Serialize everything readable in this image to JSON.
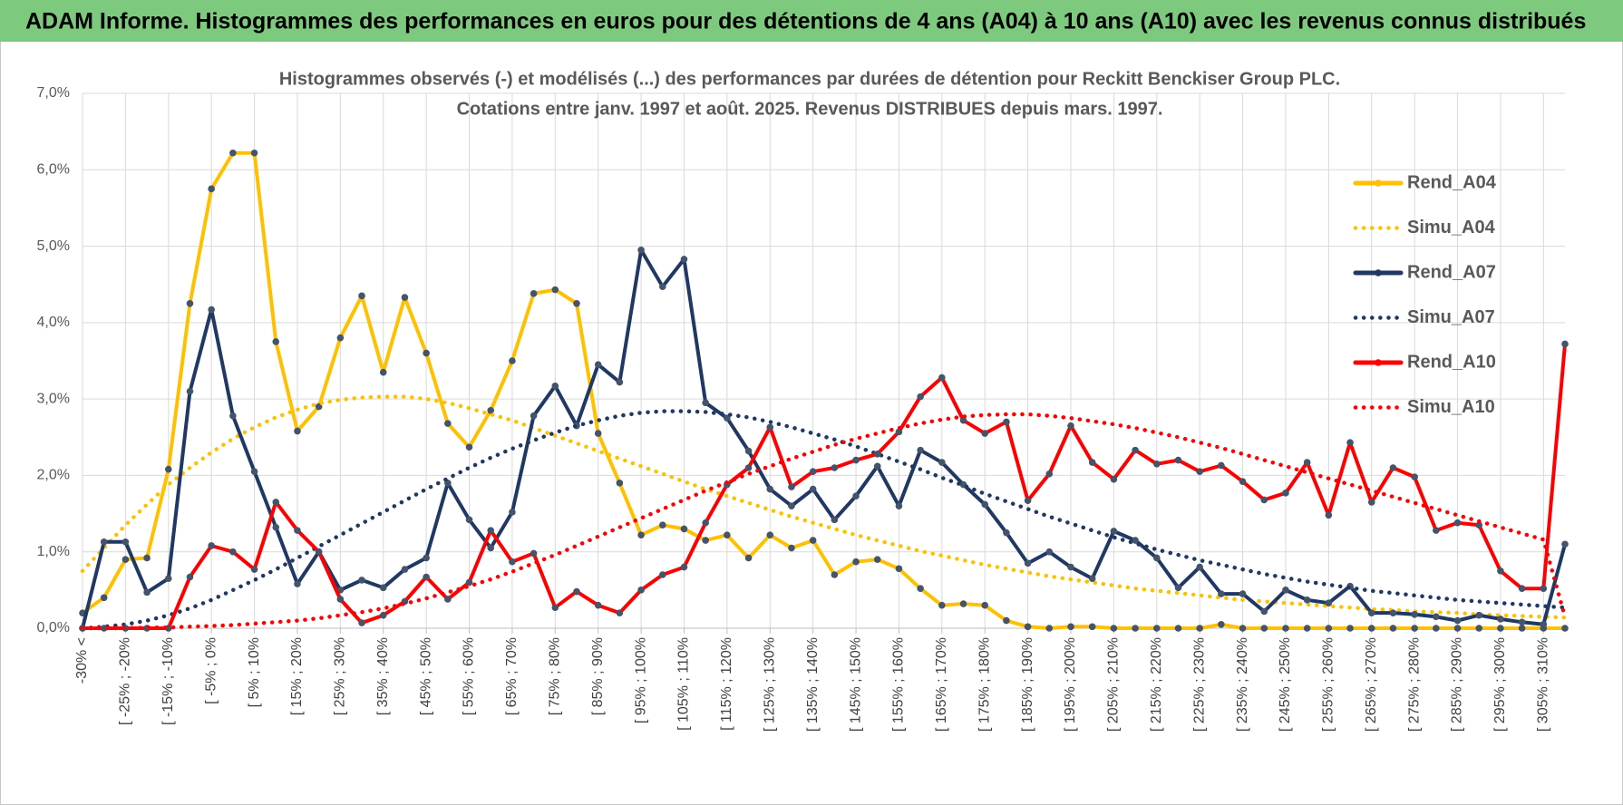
{
  "chart_data": {
    "type": "line",
    "header": "ADAM Informe. Histogrammes des performances en euros pour des détentions de 4 ans (A04) à 10 ans (A10) avec les revenus connus distribués",
    "title": [
      "Histogrammes observés (-) et modélisés (...) des performances par durées de détention pour Reckitt Benckiser Group PLC.",
      "Cotations entre janv. 1997 et août. 2025. Revenus DISTRIBUES depuis mars. 1997."
    ],
    "categories": [
      "-30% <",
      null,
      "[ -25% ; -20%",
      null,
      "[ -15% ; -10%",
      null,
      "[ -5% ; 0%",
      null,
      "[ 5% ; 10%",
      null,
      "[ 15% ; 20%",
      null,
      "[ 25% ; 30%",
      null,
      "[ 35% ; 40%",
      null,
      "[ 45% ; 50%",
      null,
      "[ 55% ; 60%",
      null,
      "[ 65% ; 70%",
      null,
      "[ 75% ; 80%",
      null,
      "[ 85% ; 90%",
      null,
      "[ 95% ; 100%",
      null,
      "[ 105% ; 110%",
      null,
      "[ 115% ; 120%",
      null,
      "[ 125% ; 130%",
      null,
      "[ 135% ; 140%",
      null,
      "[ 145% ; 150%",
      null,
      "[ 155% ; 160%",
      null,
      "[ 165% ; 170%",
      null,
      "[ 175% ; 180%",
      null,
      "[ 185% ; 190%",
      null,
      "[ 195% ; 200%",
      null,
      "[ 205% ; 210%",
      null,
      "[ 215% ; 220%",
      null,
      "[ 225% ; 230%",
      null,
      "[ 235% ; 240%",
      null,
      "[ 245% ; 250%",
      null,
      "[ 255% ; 260%",
      null,
      "[ 265% ; 270%",
      null,
      "[ 275% ; 280%",
      null,
      "[ 285% ; 290%",
      null,
      "[ 295% ; 300%",
      null,
      "[ 305% ; 310%",
      null
    ],
    "ylim": [
      0,
      7
    ],
    "yticks": [
      {
        "value": 0,
        "label": "0,0%"
      },
      {
        "value": 1,
        "label": "1,0%"
      },
      {
        "value": 2,
        "label": "2,0%"
      },
      {
        "value": 3,
        "label": "3,0%"
      },
      {
        "value": 4,
        "label": "4,0%"
      },
      {
        "value": 5,
        "label": "5,0%"
      },
      {
        "value": 6,
        "label": "6,0%"
      },
      {
        "value": 7,
        "label": "7,0%"
      }
    ],
    "grid": true,
    "legend": "right",
    "series": [
      {
        "name": "Rend_A04",
        "color": "#ffc000",
        "line_style": "solid",
        "values": [
          0.2,
          0.4,
          0.9,
          0.92,
          2.08,
          4.25,
          5.75,
          6.22,
          6.22,
          3.75,
          2.58,
          2.9,
          3.8,
          4.35,
          3.35,
          4.33,
          3.6,
          2.68,
          2.37,
          2.85,
          3.5,
          4.38,
          4.43,
          4.25,
          2.55,
          1.9,
          1.22,
          1.35,
          1.3,
          1.15,
          1.22,
          0.92,
          1.22,
          1.05,
          1.15,
          0.7,
          0.87,
          0.9,
          0.78,
          0.52,
          0.3,
          0.32,
          0.3,
          0.1,
          0.02,
          0,
          0.02,
          0.02,
          0,
          0,
          0,
          0,
          0,
          0.05,
          0,
          0,
          0,
          0,
          0,
          0,
          0,
          0,
          0,
          0,
          0,
          0,
          0,
          0,
          0,
          0
        ]
      },
      {
        "name": "Simu_A04",
        "color": "#ffc000",
        "line_style": "dotted",
        "values": [
          0.75,
          1.05,
          1.35,
          1.62,
          1.88,
          2.1,
          2.3,
          2.48,
          2.63,
          2.76,
          2.86,
          2.94,
          2.99,
          3.02,
          3.03,
          3.03,
          3.0,
          2.95,
          2.88,
          2.8,
          2.72,
          2.62,
          2.52,
          2.42,
          2.32,
          2.22,
          2.12,
          2.02,
          1.92,
          1.82,
          1.73,
          1.64,
          1.55,
          1.46,
          1.38,
          1.3,
          1.22,
          1.15,
          1.08,
          1.01,
          0.95,
          0.89,
          0.83,
          0.78,
          0.73,
          0.68,
          0.64,
          0.6,
          0.56,
          0.52,
          0.49,
          0.46,
          0.43,
          0.4,
          0.37,
          0.35,
          0.33,
          0.31,
          0.29,
          0.27,
          0.25,
          0.24,
          0.22,
          0.21,
          0.2,
          0.18,
          0.17,
          0.16,
          0.15,
          0.14
        ]
      },
      {
        "name": "Rend_A07",
        "color": "#1f3864",
        "line_style": "solid",
        "values": [
          0,
          1.13,
          1.13,
          0.47,
          0.65,
          3.1,
          4.17,
          2.78,
          2.05,
          1.32,
          0.58,
          1.0,
          0.5,
          0.63,
          0.53,
          0.77,
          0.92,
          1.9,
          1.42,
          1.05,
          1.52,
          2.78,
          3.17,
          2.65,
          3.45,
          3.22,
          4.95,
          4.47,
          4.83,
          2.95,
          2.75,
          2.32,
          1.82,
          1.6,
          1.82,
          1.42,
          1.73,
          2.12,
          1.6,
          2.33,
          2.17,
          1.88,
          1.62,
          1.25,
          0.85,
          1.0,
          0.8,
          0.65,
          1.27,
          1.15,
          0.92,
          0.53,
          0.8,
          0.45,
          0.45,
          0.22,
          0.5,
          0.37,
          0.33,
          0.55,
          0.2,
          0.2,
          0.18,
          0.15,
          0.1,
          0.17,
          0.12,
          0.08,
          0.05,
          1.1
        ]
      },
      {
        "name": "Simu_A07",
        "color": "#1f3864",
        "line_style": "dotted",
        "values": [
          0,
          0.02,
          0.05,
          0.1,
          0.17,
          0.26,
          0.37,
          0.5,
          0.63,
          0.77,
          0.92,
          1.07,
          1.22,
          1.37,
          1.52,
          1.67,
          1.82,
          1.96,
          2.1,
          2.23,
          2.35,
          2.46,
          2.56,
          2.65,
          2.72,
          2.78,
          2.82,
          2.84,
          2.84,
          2.83,
          2.8,
          2.76,
          2.7,
          2.63,
          2.55,
          2.47,
          2.38,
          2.28,
          2.18,
          2.08,
          1.97,
          1.87,
          1.76,
          1.66,
          1.56,
          1.46,
          1.37,
          1.28,
          1.19,
          1.11,
          1.03,
          0.96,
          0.89,
          0.83,
          0.77,
          0.71,
          0.66,
          0.61,
          0.57,
          0.53,
          0.49,
          0.46,
          0.43,
          0.4,
          0.37,
          0.35,
          0.33,
          0.31,
          0.29,
          0.27
        ]
      },
      {
        "name": "Rend_A10",
        "color": "#ff0000",
        "line_style": "solid",
        "values": [
          0,
          0,
          0,
          0,
          0,
          0.67,
          1.08,
          1.0,
          0.77,
          1.65,
          1.28,
          1.0,
          0.38,
          0.07,
          0.17,
          0.35,
          0.67,
          0.38,
          0.6,
          1.28,
          0.87,
          0.98,
          0.27,
          0.48,
          0.3,
          0.2,
          0.5,
          0.7,
          0.8,
          1.38,
          1.88,
          2.1,
          2.63,
          1.85,
          2.05,
          2.1,
          2.2,
          2.28,
          2.57,
          3.03,
          3.28,
          2.72,
          2.55,
          2.7,
          1.67,
          2.02,
          2.65,
          2.17,
          1.95,
          2.33,
          2.15,
          2.2,
          2.05,
          2.13,
          1.92,
          1.68,
          1.77,
          2.17,
          1.48,
          2.43,
          1.65,
          2.1,
          1.98,
          1.28,
          1.38,
          1.35,
          0.75,
          0.52,
          0.52,
          3.72
        ]
      },
      {
        "name": "Simu_A10",
        "color": "#ff0000",
        "line_style": "dotted",
        "values": [
          0,
          0,
          0,
          0.01,
          0.01,
          0.02,
          0.03,
          0.04,
          0.06,
          0.08,
          0.1,
          0.13,
          0.17,
          0.21,
          0.26,
          0.32,
          0.39,
          0.47,
          0.55,
          0.64,
          0.74,
          0.85,
          0.96,
          1.08,
          1.2,
          1.32,
          1.44,
          1.56,
          1.68,
          1.8,
          1.91,
          2.02,
          2.12,
          2.22,
          2.31,
          2.4,
          2.48,
          2.55,
          2.62,
          2.68,
          2.73,
          2.77,
          2.79,
          2.8,
          2.8,
          2.78,
          2.75,
          2.71,
          2.67,
          2.62,
          2.56,
          2.5,
          2.43,
          2.36,
          2.28,
          2.2,
          2.12,
          2.04,
          1.96,
          1.88,
          1.8,
          1.72,
          1.64,
          1.56,
          1.48,
          1.4,
          1.32,
          1.24,
          1.16,
          0.15
        ]
      }
    ]
  }
}
